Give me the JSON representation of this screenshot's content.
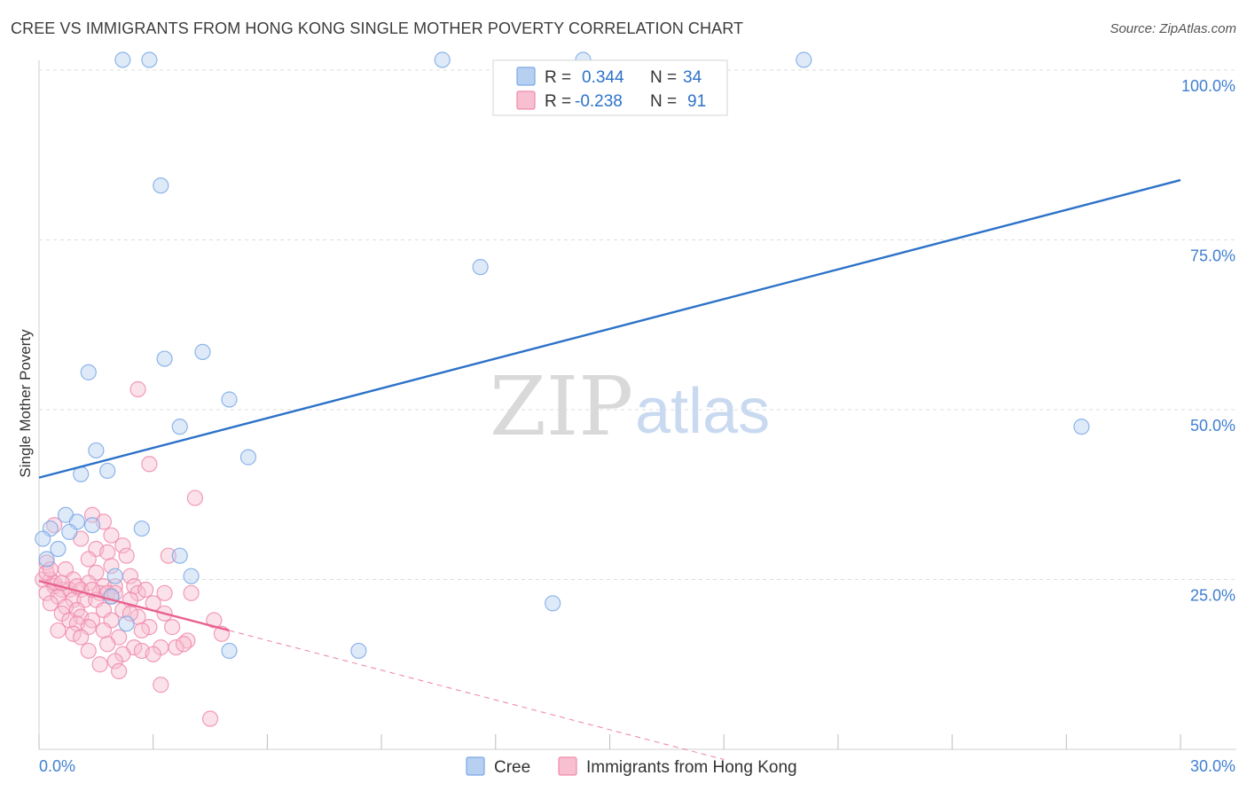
{
  "title": "CREE VS IMMIGRANTS FROM HONG KONG SINGLE MOTHER POVERTY CORRELATION CHART",
  "source": "Source: ZipAtlas.com",
  "watermark": {
    "zip": "ZIP",
    "atlas": "atlas"
  },
  "colors": {
    "cree": "#7aa8e6",
    "cree_fill": "#b7d0f2",
    "cree_line": "#2c72c8",
    "hk": "#f08aab",
    "hk_fill": "#f7bfd0",
    "hk_line": "#e8638f",
    "grid": "#dddddd",
    "tick_label": "#3f7fd0"
  },
  "legend": {
    "r_label": "R =",
    "n_label": "N =",
    "cree_r": "0.344",
    "cree_n": "34",
    "hk_r": "-0.238",
    "hk_n": "91"
  },
  "bottom_legend": {
    "cree": "Cree",
    "hk": "Immigrants from Hong Kong"
  },
  "chart_data": {
    "type": "scatter",
    "title": "CREE VS IMMIGRANTS FROM HONG KONG SINGLE MOTHER POVERTY CORRELATION CHART",
    "xlabel": "",
    "ylabel": "Single Mother Poverty",
    "xlim": [
      0,
      30
    ],
    "ylim": [
      0,
      100
    ],
    "x_tick_labels": [
      "0.0%",
      "30.0%"
    ],
    "y_tick_labels": [
      "25.0%",
      "50.0%",
      "75.0%",
      "100.0%"
    ],
    "y_ticks": [
      25,
      50,
      75,
      100
    ],
    "grid": true,
    "legend_position": "top-center",
    "series": [
      {
        "name": "Cree",
        "r": 0.344,
        "n": 34,
        "trend": {
          "x": [
            0,
            30
          ],
          "y": [
            40.0,
            83.8
          ]
        },
        "points": [
          [
            2.2,
            101.5
          ],
          [
            2.9,
            101.5
          ],
          [
            10.6,
            101.5
          ],
          [
            20.1,
            101.5
          ],
          [
            14.3,
            101.5
          ],
          [
            3.2,
            83.0
          ],
          [
            11.6,
            71.0
          ],
          [
            4.3,
            58.5
          ],
          [
            3.3,
            57.5
          ],
          [
            1.3,
            55.5
          ],
          [
            5.0,
            51.5
          ],
          [
            3.7,
            47.5
          ],
          [
            1.5,
            44.0
          ],
          [
            5.5,
            43.0
          ],
          [
            1.8,
            41.0
          ],
          [
            1.1,
            40.5
          ],
          [
            27.4,
            47.5
          ],
          [
            0.7,
            34.5
          ],
          [
            0.3,
            32.5
          ],
          [
            1.0,
            33.5
          ],
          [
            1.4,
            33.0
          ],
          [
            2.7,
            32.5
          ],
          [
            0.1,
            31.0
          ],
          [
            0.5,
            29.5
          ],
          [
            0.2,
            28.0
          ],
          [
            3.7,
            28.5
          ],
          [
            2.0,
            25.5
          ],
          [
            4.0,
            25.5
          ],
          [
            1.9,
            22.5
          ],
          [
            2.3,
            18.5
          ],
          [
            5.0,
            14.5
          ],
          [
            8.4,
            14.5
          ],
          [
            13.5,
            21.5
          ],
          [
            0.8,
            32.0
          ]
        ]
      },
      {
        "name": "Immigrants from Hong Kong",
        "r": -0.238,
        "n": 91,
        "trend": {
          "x": [
            0,
            5
          ],
          "y": [
            24.8,
            17.5
          ]
        },
        "trend_ext": {
          "x": [
            5,
            18
          ],
          "y": [
            17.5,
            -1.5
          ]
        },
        "points": [
          [
            2.6,
            53.0
          ],
          [
            2.9,
            42.0
          ],
          [
            4.1,
            37.0
          ],
          [
            1.4,
            34.5
          ],
          [
            1.7,
            33.5
          ],
          [
            0.4,
            33.0
          ],
          [
            1.9,
            31.5
          ],
          [
            1.1,
            31.0
          ],
          [
            2.2,
            30.0
          ],
          [
            1.5,
            29.5
          ],
          [
            1.8,
            29.0
          ],
          [
            2.3,
            28.5
          ],
          [
            3.4,
            28.5
          ],
          [
            1.3,
            28.0
          ],
          [
            1.9,
            27.0
          ],
          [
            0.2,
            27.5
          ],
          [
            0.7,
            26.5
          ],
          [
            1.5,
            26.0
          ],
          [
            2.4,
            25.5
          ],
          [
            0.3,
            25.0
          ],
          [
            0.9,
            25.0
          ],
          [
            1.3,
            24.5
          ],
          [
            1.7,
            24.0
          ],
          [
            2.0,
            24.0
          ],
          [
            2.5,
            24.0
          ],
          [
            0.4,
            24.0
          ],
          [
            0.6,
            23.5
          ],
          [
            0.8,
            23.5
          ],
          [
            1.1,
            23.5
          ],
          [
            1.6,
            23.0
          ],
          [
            1.8,
            23.0
          ],
          [
            2.0,
            23.0
          ],
          [
            2.6,
            23.0
          ],
          [
            3.3,
            23.0
          ],
          [
            4.0,
            23.0
          ],
          [
            0.2,
            23.0
          ],
          [
            0.5,
            22.5
          ],
          [
            0.9,
            22.0
          ],
          [
            1.2,
            22.0
          ],
          [
            1.5,
            22.0
          ],
          [
            2.4,
            22.0
          ],
          [
            3.0,
            21.5
          ],
          [
            0.3,
            21.5
          ],
          [
            0.7,
            21.0
          ],
          [
            1.0,
            20.5
          ],
          [
            1.7,
            20.5
          ],
          [
            2.2,
            20.5
          ],
          [
            3.3,
            20.0
          ],
          [
            0.6,
            20.0
          ],
          [
            1.1,
            19.5
          ],
          [
            1.4,
            19.0
          ],
          [
            1.9,
            19.0
          ],
          [
            2.6,
            19.5
          ],
          [
            4.6,
            19.0
          ],
          [
            0.8,
            19.0
          ],
          [
            1.0,
            18.5
          ],
          [
            1.3,
            18.0
          ],
          [
            2.9,
            18.0
          ],
          [
            3.5,
            18.0
          ],
          [
            0.5,
            17.5
          ],
          [
            1.7,
            17.5
          ],
          [
            4.8,
            17.0
          ],
          [
            0.9,
            17.0
          ],
          [
            1.1,
            16.5
          ],
          [
            2.1,
            16.5
          ],
          [
            3.9,
            16.0
          ],
          [
            1.8,
            15.5
          ],
          [
            2.5,
            15.0
          ],
          [
            3.2,
            15.0
          ],
          [
            3.6,
            15.0
          ],
          [
            1.3,
            14.5
          ],
          [
            2.7,
            14.5
          ],
          [
            2.2,
            14.0
          ],
          [
            3.0,
            14.0
          ],
          [
            2.0,
            13.0
          ],
          [
            1.6,
            12.5
          ],
          [
            2.1,
            11.5
          ],
          [
            3.2,
            9.5
          ],
          [
            4.5,
            4.5
          ],
          [
            0.1,
            25.0
          ],
          [
            0.4,
            24.5
          ],
          [
            0.6,
            24.5
          ],
          [
            1.0,
            24.0
          ],
          [
            1.4,
            23.5
          ],
          [
            2.8,
            23.5
          ],
          [
            0.2,
            26.0
          ],
          [
            0.3,
            26.5
          ],
          [
            1.9,
            22.5
          ],
          [
            2.7,
            17.5
          ],
          [
            3.8,
            15.5
          ],
          [
            2.4,
            20.0
          ]
        ]
      }
    ]
  }
}
